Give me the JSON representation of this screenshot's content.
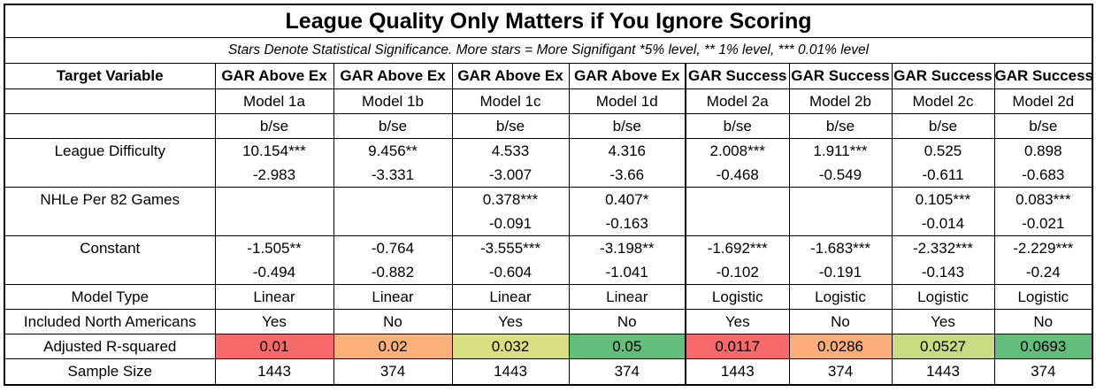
{
  "title": "League Quality Only Matters if You Ignore Scoring",
  "subtitle": "Stars Denote Statistical Significance. More stars = More Signifigant *5% level, ** 1% level, *** 0.01% level",
  "columns": [
    "Target Variable",
    "GAR Above Ex",
    "GAR Above Ex",
    "GAR Above Ex",
    "GAR Above Ex",
    "GAR Success",
    "GAR Success",
    "GAR Success",
    "GAR Success"
  ],
  "models": [
    "Model 1a",
    "Model 1b",
    "Model 1c",
    "Model 1d",
    "Model 2a",
    "Model 2b",
    "Model 2c",
    "Model 2d"
  ],
  "bse": [
    "b/se",
    "b/se",
    "b/se",
    "b/se",
    "b/se",
    "b/se",
    "b/se",
    "b/se"
  ],
  "league_difficulty": {
    "label": "League Difficulty",
    "b": [
      "10.154***",
      "9.456**",
      "4.533",
      "4.316",
      "2.008***",
      "1.911***",
      "0.525",
      "0.898"
    ],
    "se": [
      "-2.983",
      "-3.331",
      "-3.007",
      "-3.66",
      "-0.468",
      "-0.549",
      "-0.611",
      "-0.683"
    ]
  },
  "nhle": {
    "label": "NHLe Per 82 Games",
    "b": [
      "",
      "",
      "0.378***",
      "0.407*",
      "",
      "",
      "0.105***",
      "0.083***"
    ],
    "se": [
      "",
      "",
      "-0.091",
      "-0.163",
      "",
      "",
      "-0.014",
      "-0.021"
    ]
  },
  "constant": {
    "label": "Constant",
    "b": [
      "-1.505**",
      "-0.764",
      "-3.555***",
      "-3.198**",
      "-1.692***",
      "-1.683***",
      "-2.332***",
      "-2.229***"
    ],
    "se": [
      "-0.494",
      "-0.882",
      "-0.604",
      "-1.041",
      "-0.102",
      "-0.191",
      "-0.143",
      "-0.24"
    ]
  },
  "model_type": {
    "label": "Model Type",
    "values": [
      "Linear",
      "Linear",
      "Linear",
      "Linear",
      "Logistic",
      "Logistic",
      "Logistic",
      "Logistic"
    ]
  },
  "north_americans": {
    "label": "Included North Americans",
    "values": [
      "Yes",
      "No",
      "Yes",
      "No",
      "Yes",
      "No",
      "Yes",
      "No"
    ]
  },
  "r_squared": {
    "label": "Adjusted R-squared",
    "values": [
      "0.01",
      "0.02",
      "0.032",
      "0.05",
      "0.0117",
      "0.0286",
      "0.0527",
      "0.0693"
    ],
    "colors": [
      "#f8696b",
      "#fbb17a",
      "#d8e082",
      "#63be7b",
      "#f8696b",
      "#fbae79",
      "#c9dc81",
      "#63be7b"
    ]
  },
  "sample_size": {
    "label": "Sample Size",
    "values": [
      "1443",
      "374",
      "1443",
      "374",
      "1443",
      "374",
      "1443",
      "374"
    ]
  }
}
